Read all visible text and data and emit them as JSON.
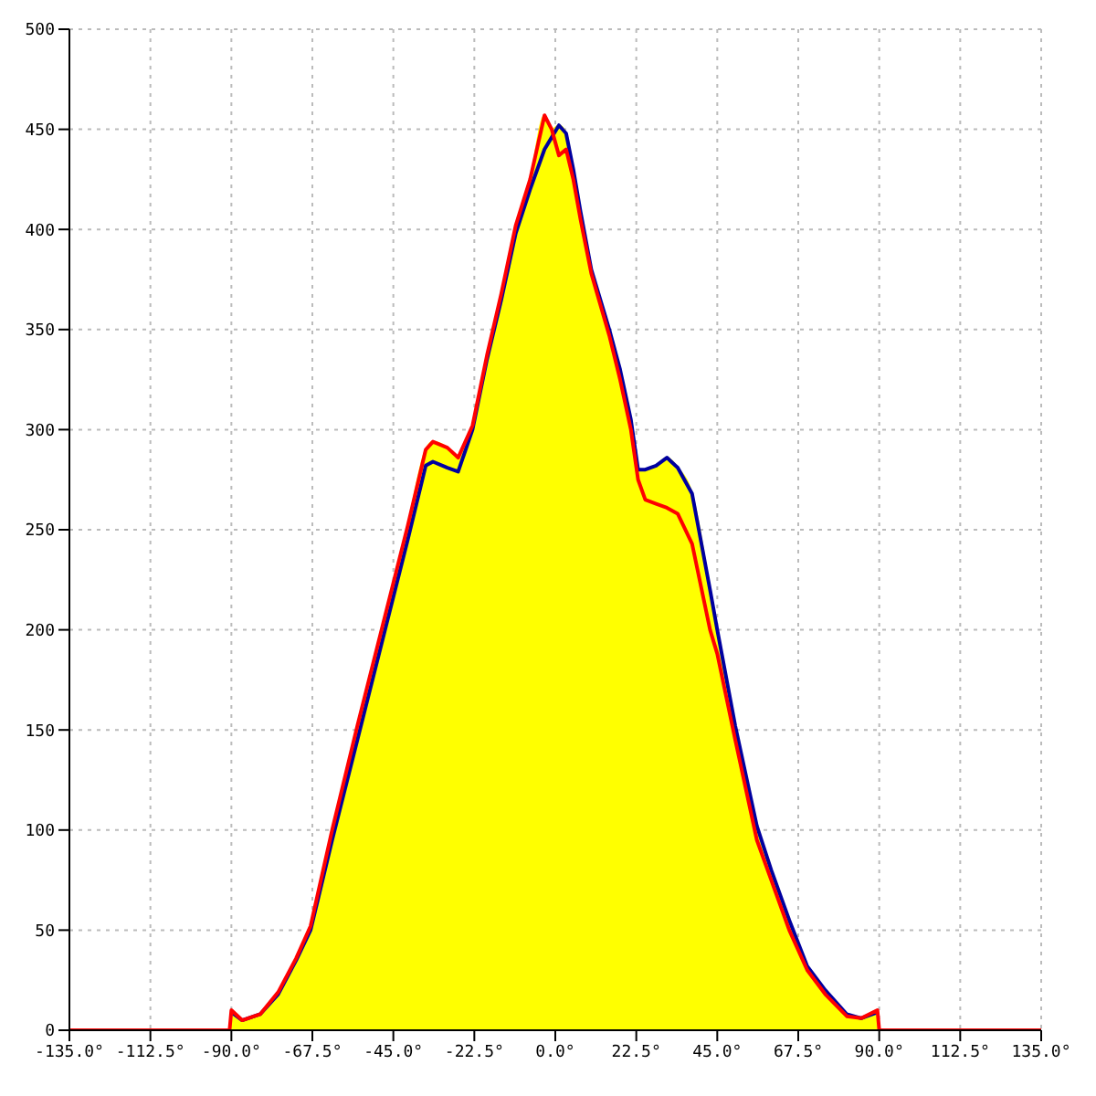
{
  "chart_data": {
    "type": "line",
    "x": [
      -135,
      -90.5,
      -90,
      -87,
      -82,
      -77,
      -72,
      -68,
      -62,
      -55,
      -48,
      -41,
      -36,
      -34,
      -30,
      -27,
      -23,
      -19,
      -15,
      -11,
      -7,
      -3,
      -1,
      1,
      3,
      5,
      7,
      10,
      15,
      18,
      21,
      23,
      25,
      28,
      31,
      34,
      38,
      43,
      45,
      50,
      56,
      60,
      65,
      70,
      75,
      81,
      85,
      89.5,
      90,
      135
    ],
    "series": [
      {
        "type": "area",
        "color": "#ffff00",
        "values": [
          null,
          0,
          10,
          5,
          8,
          19,
          36,
          52,
          100,
          152,
          202,
          252,
          290,
          294,
          291,
          286,
          302,
          337,
          368,
          402,
          425,
          457,
          450,
          452,
          448,
          430,
          409,
          380,
          350,
          330,
          305,
          280,
          280,
          282,
          286,
          281,
          268,
          220,
          200,
          152,
          102,
          80,
          55,
          32,
          20,
          8,
          6,
          10,
          0,
          null
        ]
      },
      {
        "color": "#0000a0",
        "values": [
          null,
          null,
          9,
          5,
          8,
          18,
          35,
          50,
          95,
          145,
          195,
          245,
          282,
          284,
          281,
          279,
          300,
          335,
          365,
          398,
          420,
          440,
          446,
          452,
          448,
          430,
          409,
          380,
          350,
          330,
          305,
          280,
          280,
          282,
          286,
          281,
          268,
          220,
          200,
          152,
          102,
          80,
          55,
          32,
          20,
          8,
          6,
          9,
          null,
          null
        ]
      },
      {
        "color": "#ff0000",
        "values": [
          0,
          0,
          10,
          5,
          8,
          19,
          36,
          52,
          100,
          152,
          202,
          252,
          290,
          294,
          291,
          286,
          302,
          337,
          368,
          402,
          425,
          457,
          450,
          437,
          440,
          425,
          405,
          378,
          347,
          325,
          300,
          275,
          265,
          263,
          261,
          258,
          243,
          200,
          188,
          145,
          95,
          75,
          50,
          30,
          18,
          7,
          6,
          10,
          0,
          0
        ]
      }
    ],
    "xlim": [
      -135,
      135
    ],
    "xticks": [
      {
        "value": -135,
        "label": "-135.0°"
      },
      {
        "value": -112.5,
        "label": "-112.5°"
      },
      {
        "value": -90,
        "label": "-90.0°"
      },
      {
        "value": -67.5,
        "label": "-67.5°"
      },
      {
        "value": -45,
        "label": "-45.0°"
      },
      {
        "value": -22.5,
        "label": "-22.5°"
      },
      {
        "value": 0,
        "label": "0.0°"
      },
      {
        "value": 22.5,
        "label": "22.5°"
      },
      {
        "value": 45,
        "label": "45.0°"
      },
      {
        "value": 67.5,
        "label": "67.5°"
      },
      {
        "value": 90,
        "label": "90.0°"
      },
      {
        "value": 112.5,
        "label": "112.5°"
      },
      {
        "value": 135,
        "label": "135.0°"
      }
    ],
    "ylim": [
      0,
      500
    ],
    "yticks": [
      0,
      50,
      100,
      150,
      200,
      250,
      300,
      350,
      400,
      450,
      500
    ],
    "grid": true,
    "legend": false
  }
}
